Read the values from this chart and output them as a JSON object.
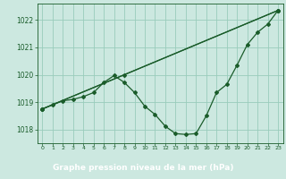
{
  "title": "Graphe pression niveau de la mer (hPa)",
  "bg_color": "#cce8e0",
  "plot_bg_color": "#cce8e0",
  "grid_color": "#99ccbb",
  "line_color": "#1a5c2a",
  "label_bg": "#2d6e3e",
  "label_fg": "#ffffff",
  "xlim": [
    -0.5,
    23.5
  ],
  "ylim": [
    1017.5,
    1022.6
  ],
  "yticks": [
    1018,
    1019,
    1020,
    1021,
    1022
  ],
  "xticks": [
    0,
    1,
    2,
    3,
    4,
    5,
    6,
    7,
    8,
    9,
    10,
    11,
    12,
    13,
    14,
    15,
    16,
    17,
    18,
    19,
    20,
    21,
    22,
    23
  ],
  "series1_x": [
    0,
    1,
    2,
    3,
    4,
    5,
    6,
    7,
    8,
    9,
    10,
    11,
    12,
    13,
    14,
    15,
    16,
    17,
    18,
    19,
    20,
    21,
    22,
    23
  ],
  "series1_y": [
    1018.75,
    1018.9,
    1019.05,
    1019.1,
    1019.2,
    1019.35,
    1019.72,
    1019.97,
    1019.72,
    1019.35,
    1018.85,
    1018.55,
    1018.12,
    1017.85,
    1017.82,
    1017.85,
    1018.5,
    1019.35,
    1019.65,
    1020.35,
    1021.1,
    1021.55,
    1021.85,
    1022.35
  ],
  "series2_x": [
    0,
    23
  ],
  "series2_y": [
    1018.75,
    1022.35
  ],
  "series3_x": [
    0,
    8,
    23
  ],
  "series3_y": [
    1018.75,
    1020.0,
    1022.35
  ]
}
